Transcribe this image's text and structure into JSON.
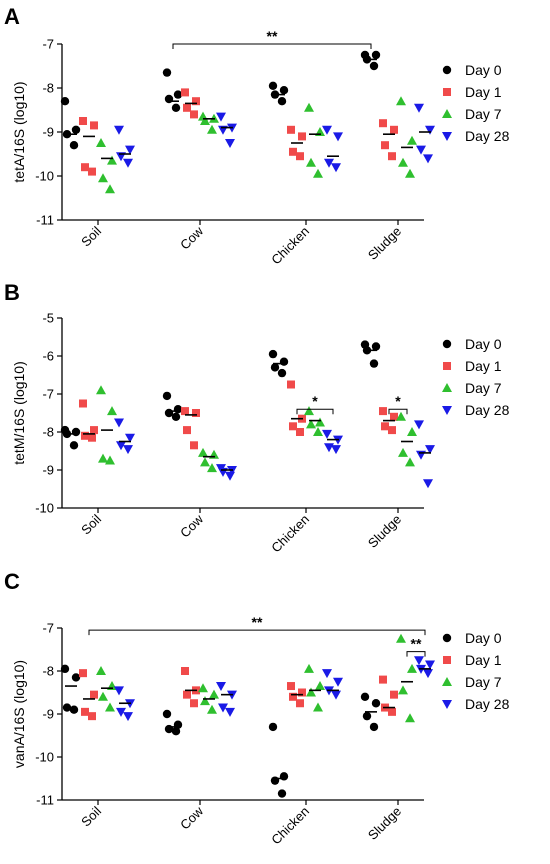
{
  "chart_data": [
    {
      "type": "scatter",
      "panel": "A",
      "ylabel": "tetA/16S (log10)",
      "ylim": [
        -11,
        -7
      ],
      "yticks": [
        "-7",
        "-8",
        "-9",
        "-10",
        "-11"
      ],
      "categories": [
        "Soil",
        "Cow",
        "Chicken",
        "Sludge"
      ],
      "series": [
        {
          "name": "Day 0",
          "color": "#000000",
          "marker": "circle",
          "points": [
            [
              -8.3,
              -8.95,
              -9.05,
              -9.3
            ],
            [
              -7.65,
              -8.15,
              -8.25,
              -8.45
            ],
            [
              -7.95,
              -8.05,
              -8.15,
              -8.3
            ],
            [
              -7.25,
              -7.25,
              -7.35,
              -7.5
            ]
          ],
          "means": [
            -9.05,
            -8.3,
            -8.15,
            -7.35
          ]
        },
        {
          "name": "Day 1",
          "color": "#f04a4a",
          "marker": "square",
          "points": [
            [
              -8.75,
              -8.85,
              -9.8,
              -9.9
            ],
            [
              -8.1,
              -8.3,
              -8.45,
              -8.6
            ],
            [
              -8.95,
              -9.1,
              -9.45,
              -9.55
            ],
            [
              -8.8,
              -8.95,
              -9.3,
              -9.55
            ]
          ],
          "means": [
            -9.1,
            -8.35,
            -9.25,
            -9.05
          ]
        },
        {
          "name": "Day 7",
          "color": "#2fbf2f",
          "marker": "triangle-up",
          "points": [
            [
              -9.25,
              -9.65,
              -10.05,
              -10.3
            ],
            [
              -8.65,
              -8.7,
              -8.75,
              -8.95
            ],
            [
              -8.45,
              -9.0,
              -9.7,
              -9.95
            ],
            [
              -8.3,
              -9.2,
              -9.7,
              -9.95
            ]
          ],
          "means": [
            -9.6,
            -8.7,
            -9.05,
            -9.35
          ]
        },
        {
          "name": "Day 28",
          "color": "#1a1ae6",
          "marker": "triangle-down",
          "points": [
            [
              -8.95,
              -9.4,
              -9.55,
              -9.7
            ],
            [
              -8.65,
              -8.9,
              -8.95,
              -9.25
            ],
            [
              -8.95,
              -9.1,
              -9.7,
              -9.8
            ],
            [
              -8.45,
              -8.95,
              -9.4,
              -9.6
            ]
          ],
          "means": [
            -9.5,
            -8.9,
            -9.55,
            -9.0
          ]
        }
      ],
      "annotations": [
        {
          "text": "**",
          "from": [
            1,
            0
          ],
          "to": [
            3,
            0
          ],
          "y": -7.0
        }
      ],
      "legend_position": "right"
    },
    {
      "type": "scatter",
      "panel": "B",
      "ylabel": "tetM/16S (log10)",
      "ylim": [
        -10,
        -5
      ],
      "yticks": [
        "-5",
        "-6",
        "-7",
        "-8",
        "-9",
        "-10"
      ],
      "categories": [
        "Soil",
        "Cow",
        "Chicken",
        "Sludge"
      ],
      "series": [
        {
          "name": "Day 0",
          "color": "#000000",
          "marker": "circle",
          "points": [
            [
              -7.95,
              -8.0,
              -8.05,
              -8.35
            ],
            [
              -7.05,
              -7.4,
              -7.5,
              -7.6
            ],
            [
              -5.95,
              -6.15,
              -6.3,
              -6.45
            ],
            [
              -5.7,
              -5.75,
              -5.85,
              -6.2
            ]
          ],
          "means": [
            -8.05,
            -7.45,
            -6.2,
            -5.85
          ]
        },
        {
          "name": "Day 1",
          "color": "#f04a4a",
          "marker": "square",
          "points": [
            [
              -7.25,
              -7.95,
              -8.1,
              -8.15
            ],
            [
              -7.45,
              -7.5,
              -7.95,
              -8.35
            ],
            [
              -6.75,
              -7.65,
              -7.85,
              -8.0
            ],
            [
              -7.45,
              -7.6,
              -7.85,
              -7.95
            ]
          ],
          "means": [
            -8.05,
            -7.55,
            -7.65,
            -7.7
          ]
        },
        {
          "name": "Day 7",
          "color": "#2fbf2f",
          "marker": "triangle-up",
          "points": [
            [
              -6.9,
              -7.45,
              -8.7,
              -8.75
            ],
            [
              -8.55,
              -8.6,
              -8.8,
              -8.95
            ],
            [
              -7.45,
              -7.75,
              -7.8,
              -8.0
            ],
            [
              -7.6,
              -8.0,
              -8.55,
              -8.8
            ]
          ],
          "means": [
            -7.95,
            -8.65,
            -7.7,
            -8.25
          ]
        },
        {
          "name": "Day 28",
          "color": "#1a1ae6",
          "marker": "triangle-down",
          "points": [
            [
              -7.75,
              -8.15,
              -8.35,
              -8.45
            ],
            [
              -8.95,
              -9.0,
              -9.05,
              -9.15
            ],
            [
              -8.05,
              -8.2,
              -8.4,
              -8.45
            ],
            [
              -7.8,
              -8.45,
              -8.6,
              -9.35
            ]
          ],
          "means": [
            -8.25,
            -9.0,
            -8.2,
            -8.55
          ]
        }
      ],
      "annotations": [
        {
          "text": "*",
          "from": [
            2,
            1
          ],
          "to": [
            2,
            3
          ],
          "y": -7.4
        },
        {
          "text": "*",
          "from": [
            3,
            1
          ],
          "to": [
            3,
            2
          ],
          "y": -7.4
        }
      ],
      "legend_position": "right"
    },
    {
      "type": "scatter",
      "panel": "C",
      "ylabel": "vanA/16S (log10)",
      "ylim": [
        -11,
        -7
      ],
      "yticks": [
        "-7",
        "-8",
        "-9",
        "-10",
        "-11"
      ],
      "categories": [
        "Soil",
        "Cow",
        "Chicken",
        "Sludge"
      ],
      "series": [
        {
          "name": "Day 0",
          "color": "#000000",
          "marker": "circle",
          "points": [
            [
              -7.95,
              -8.15,
              -8.85,
              -8.9
            ],
            [
              -9.0,
              -9.25,
              -9.35,
              -9.4
            ],
            [
              -9.3,
              -10.45,
              -10.55,
              -10.85
            ],
            [
              -8.6,
              -8.75,
              -9.05,
              -9.3
            ]
          ],
          "means": [
            -8.35,
            -9.3,
            -10.5,
            -8.95
          ]
        },
        {
          "name": "Day 1",
          "color": "#f04a4a",
          "marker": "square",
          "points": [
            [
              -8.05,
              -8.55,
              -8.95,
              -9.05
            ],
            [
              -8.0,
              -8.45,
              -8.55,
              -8.75
            ],
            [
              -8.35,
              -8.5,
              -8.6,
              -8.75
            ],
            [
              -8.2,
              -8.55,
              -8.85,
              -8.95
            ]
          ],
          "means": [
            -8.65,
            -8.45,
            -8.55,
            -8.85
          ]
        },
        {
          "name": "Day 7",
          "color": "#2fbf2f",
          "marker": "triangle-up",
          "points": [
            [
              -8.0,
              -8.35,
              -8.6,
              -8.85
            ],
            [
              -8.4,
              -8.55,
              -8.7,
              -8.9
            ],
            [
              -7.95,
              -8.35,
              -8.5,
              -8.85
            ],
            [
              -7.25,
              -7.95,
              -8.45,
              -9.1
            ]
          ],
          "means": [
            -8.4,
            -8.65,
            -8.45,
            -8.25
          ]
        },
        {
          "name": "Day 28",
          "color": "#1a1ae6",
          "marker": "triangle-down",
          "points": [
            [
              -8.45,
              -8.75,
              -8.95,
              -9.05
            ],
            [
              -8.35,
              -8.55,
              -8.85,
              -8.95
            ],
            [
              -8.05,
              -8.25,
              -8.45,
              -8.55
            ],
            [
              -7.75,
              -7.85,
              -7.95,
              -8.05
            ]
          ],
          "means": [
            -8.75,
            -8.55,
            -8.45,
            -7.95
          ]
        }
      ],
      "annotations": [
        {
          "text": "**",
          "from": [
            0,
            1
          ],
          "to": [
            3,
            3
          ],
          "y": -7.05
        },
        {
          "text": "**",
          "from": [
            3,
            2
          ],
          "to": [
            3,
            3
          ],
          "y": -7.55
        }
      ],
      "legend_position": "right"
    }
  ]
}
